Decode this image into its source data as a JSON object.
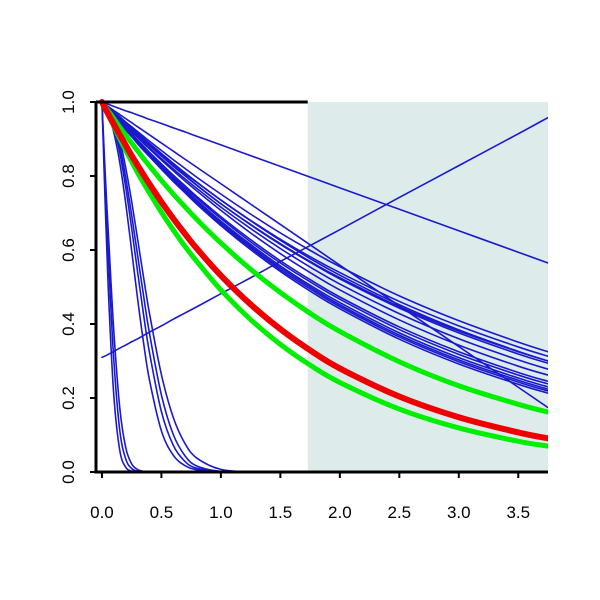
{
  "chart_data": {
    "type": "line",
    "title": "",
    "xlabel": "",
    "ylabel": "",
    "xlim": [
      -0.05,
      3.75
    ],
    "ylim": [
      0.0,
      1.0
    ],
    "grid": false,
    "legend": "none",
    "x_ticks": [
      "0.0",
      "0.5",
      "1.0",
      "1.5",
      "2.0",
      "2.5",
      "3.0",
      "3.5"
    ],
    "y_ticks": [
      "0.0",
      "0.2",
      "0.4",
      "0.6",
      "0.8",
      "1.0"
    ],
    "shaded_region": {
      "x_from": 1.73,
      "x_to": 3.75,
      "color": "#deebeb"
    },
    "x_samples": [
      0.0,
      0.03,
      0.06,
      0.1,
      0.15,
      0.2,
      0.25,
      0.3,
      0.35,
      0.4,
      0.5,
      0.6,
      0.7,
      0.8,
      1.0,
      1.25,
      1.5,
      1.75,
      2.0,
      2.5,
      3.0,
      3.5,
      3.75
    ],
    "series_styles": {
      "blue": {
        "color": "#1a1acc",
        "width": 1.6
      },
      "green": {
        "color": "#00ee00",
        "width": 5
      },
      "red": {
        "color": "#ee0000",
        "width": 6
      }
    },
    "series": [
      {
        "style": "blue",
        "values": [
          1.0,
          0.697,
          0.446,
          0.206,
          0.058,
          0.0128,
          0.0023,
          0.0003,
          0.0,
          0.0,
          0.0,
          0.0,
          0.0,
          0.0,
          0.0,
          0.0,
          0.0,
          0.0,
          0.0,
          0.0,
          0.0,
          0.0,
          0.0
        ]
      },
      {
        "style": "blue",
        "values": [
          1.0,
          0.752,
          0.541,
          0.301,
          0.112,
          0.035,
          0.0094,
          0.0022,
          0.0005,
          0.0001,
          0.0,
          0.0,
          0.0,
          0.0,
          0.0,
          0.0,
          0.0,
          0.0,
          0.0,
          0.0,
          0.0,
          0.0,
          0.0
        ]
      },
      {
        "style": "blue",
        "values": [
          1.0,
          0.789,
          0.609,
          0.38,
          0.173,
          0.066,
          0.022,
          0.0067,
          0.0018,
          0.0004,
          0.0,
          0.0,
          0.0,
          0.0,
          0.0,
          0.0,
          0.0,
          0.0,
          0.0,
          0.0,
          0.0,
          0.0,
          0.0
        ]
      },
      {
        "style": "blue",
        "values": [
          1.0,
          0.982,
          0.959,
          0.917,
          0.836,
          0.726,
          0.598,
          0.468,
          0.349,
          0.248,
          0.111,
          0.045,
          0.017,
          0.006,
          0.0007,
          0.0,
          0.0,
          0.0,
          0.0,
          0.0,
          0.0,
          0.0,
          0.0
        ]
      },
      {
        "style": "blue",
        "values": [
          1.0,
          0.985,
          0.965,
          0.931,
          0.863,
          0.769,
          0.658,
          0.54,
          0.425,
          0.322,
          0.163,
          0.072,
          0.028,
          0.01,
          0.001,
          0.0,
          0.0,
          0.0,
          0.0,
          0.0,
          0.0,
          0.0,
          0.0
        ]
      },
      {
        "style": "blue",
        "values": [
          1.0,
          0.987,
          0.97,
          0.94,
          0.88,
          0.795,
          0.694,
          0.585,
          0.476,
          0.374,
          0.208,
          0.101,
          0.043,
          0.016,
          0.0017,
          0.0,
          0.0,
          0.0,
          0.0,
          0.0,
          0.0,
          0.0,
          0.0
        ]
      },
      {
        "style": "blue",
        "values": [
          1.0,
          0.989,
          0.974,
          0.949,
          0.897,
          0.822,
          0.731,
          0.629,
          0.526,
          0.428,
          0.263,
          0.147,
          0.076,
          0.037,
          0.007,
          0.0006,
          0.0,
          0.0,
          0.0,
          0.0,
          0.0,
          0.0,
          0.0
        ]
      },
      {
        "style": "blue",
        "values": [
          0.31,
          0.314,
          0.319,
          0.326,
          0.335,
          0.343,
          0.352,
          0.36,
          0.369,
          0.378,
          0.395,
          0.413,
          0.43,
          0.447,
          0.482,
          0.525,
          0.569,
          0.612,
          0.655,
          0.742,
          0.828,
          0.914,
          0.958
        ]
      },
      {
        "style": "blue",
        "values": [
          1.0,
          0.996,
          0.993,
          0.988,
          0.982,
          0.976,
          0.971,
          0.965,
          0.959,
          0.953,
          0.942,
          0.93,
          0.919,
          0.907,
          0.884,
          0.855,
          0.826,
          0.797,
          0.768,
          0.71,
          0.652,
          0.594,
          0.565
        ]
      },
      {
        "style": "blue",
        "values": [
          1.0,
          0.993,
          0.986,
          0.977,
          0.966,
          0.955,
          0.944,
          0.933,
          0.922,
          0.911,
          0.889,
          0.867,
          0.845,
          0.823,
          0.779,
          0.724,
          0.669,
          0.614,
          0.559,
          0.449,
          0.339,
          0.229,
          0.174
        ]
      },
      {
        "style": "blue",
        "values": [
          1.0,
          0.992,
          0.984,
          0.973,
          0.96,
          0.946,
          0.933,
          0.92,
          0.907,
          0.894,
          0.869,
          0.844,
          0.82,
          0.796,
          0.751,
          0.697,
          0.646,
          0.599,
          0.555,
          0.476,
          0.409,
          0.351,
          0.325
        ]
      },
      {
        "style": "blue",
        "values": [
          1.0,
          0.992,
          0.983,
          0.972,
          0.958,
          0.944,
          0.93,
          0.916,
          0.902,
          0.888,
          0.861,
          0.834,
          0.808,
          0.783,
          0.735,
          0.679,
          0.626,
          0.577,
          0.532,
          0.452,
          0.384,
          0.326,
          0.3
        ]
      },
      {
        "style": "blue",
        "values": [
          1.0,
          0.991,
          0.982,
          0.971,
          0.956,
          0.941,
          0.926,
          0.912,
          0.897,
          0.883,
          0.855,
          0.827,
          0.801,
          0.775,
          0.725,
          0.668,
          0.615,
          0.567,
          0.522,
          0.443,
          0.376,
          0.319,
          0.294
        ]
      },
      {
        "style": "blue",
        "values": [
          1.0,
          0.991,
          0.982,
          0.97,
          0.955,
          0.94,
          0.925,
          0.911,
          0.896,
          0.882,
          0.854,
          0.826,
          0.8,
          0.774,
          0.725,
          0.669,
          0.617,
          0.569,
          0.525,
          0.447,
          0.381,
          0.325,
          0.3
        ]
      },
      {
        "style": "blue",
        "values": [
          1.0,
          0.991,
          0.982,
          0.97,
          0.955,
          0.941,
          0.926,
          0.912,
          0.898,
          0.885,
          0.858,
          0.832,
          0.806,
          0.782,
          0.735,
          0.68,
          0.629,
          0.582,
          0.539,
          0.461,
          0.395,
          0.338,
          0.313
        ]
      },
      {
        "style": "blue",
        "values": [
          1.0,
          0.99,
          0.981,
          0.968,
          0.952,
          0.937,
          0.921,
          0.906,
          0.891,
          0.876,
          0.847,
          0.819,
          0.792,
          0.766,
          0.716,
          0.658,
          0.604,
          0.554,
          0.508,
          0.428,
          0.36,
          0.303,
          0.278
        ]
      },
      {
        "style": "blue",
        "values": [
          1.0,
          0.99,
          0.98,
          0.968,
          0.951,
          0.935,
          0.919,
          0.904,
          0.888,
          0.873,
          0.843,
          0.814,
          0.786,
          0.759,
          0.707,
          0.646,
          0.59,
          0.539,
          0.492,
          0.411,
          0.343,
          0.286,
          0.262
        ]
      },
      {
        "style": "blue",
        "values": [
          1.0,
          0.99,
          0.98,
          0.966,
          0.949,
          0.931,
          0.914,
          0.897,
          0.881,
          0.864,
          0.833,
          0.802,
          0.773,
          0.744,
          0.69,
          0.628,
          0.571,
          0.52,
          0.473,
          0.392,
          0.325,
          0.269,
          0.245
        ]
      },
      {
        "style": "blue",
        "values": [
          1.0,
          0.989,
          0.979,
          0.965,
          0.948,
          0.93,
          0.913,
          0.896,
          0.879,
          0.862,
          0.83,
          0.799,
          0.769,
          0.74,
          0.685,
          0.622,
          0.565,
          0.514,
          0.467,
          0.385,
          0.318,
          0.262,
          0.238
        ]
      },
      {
        "style": "blue",
        "values": [
          1.0,
          0.989,
          0.978,
          0.964,
          0.946,
          0.928,
          0.91,
          0.893,
          0.876,
          0.859,
          0.826,
          0.794,
          0.764,
          0.734,
          0.678,
          0.615,
          0.557,
          0.505,
          0.458,
          0.376,
          0.309,
          0.254,
          0.23
        ]
      },
      {
        "style": "blue",
        "values": [
          1.0,
          0.989,
          0.978,
          0.964,
          0.945,
          0.927,
          0.909,
          0.891,
          0.873,
          0.856,
          0.823,
          0.791,
          0.76,
          0.73,
          0.674,
          0.61,
          0.552,
          0.5,
          0.452,
          0.37,
          0.303,
          0.248,
          0.224
        ]
      },
      {
        "style": "blue",
        "values": [
          1.0,
          0.989,
          0.978,
          0.963,
          0.944,
          0.926,
          0.907,
          0.889,
          0.872,
          0.854,
          0.821,
          0.788,
          0.757,
          0.727,
          0.67,
          0.606,
          0.547,
          0.495,
          0.447,
          0.365,
          0.298,
          0.243,
          0.219
        ]
      },
      {
        "style": "blue",
        "values": [
          1.0,
          0.988,
          0.977,
          0.962,
          0.943,
          0.924,
          0.906,
          0.887,
          0.869,
          0.852,
          0.818,
          0.785,
          0.754,
          0.723,
          0.666,
          0.601,
          0.542,
          0.489,
          0.441,
          0.359,
          0.292,
          0.237,
          0.213
        ]
      },
      {
        "style": "green",
        "values": [
          1.0,
          0.986,
          0.973,
          0.955,
          0.932,
          0.91,
          0.889,
          0.868,
          0.847,
          0.827,
          0.788,
          0.751,
          0.716,
          0.682,
          0.619,
          0.548,
          0.485,
          0.429,
          0.38,
          0.298,
          0.233,
          0.183,
          0.162
        ]
      },
      {
        "style": "green",
        "values": [
          1.0,
          0.98,
          0.96,
          0.934,
          0.901,
          0.869,
          0.839,
          0.809,
          0.781,
          0.754,
          0.702,
          0.654,
          0.609,
          0.568,
          0.492,
          0.412,
          0.345,
          0.289,
          0.242,
          0.17,
          0.119,
          0.083,
          0.07
        ]
      },
      {
        "style": "red",
        "values": [
          1.0,
          0.981,
          0.963,
          0.94,
          0.911,
          0.883,
          0.855,
          0.829,
          0.803,
          0.778,
          0.73,
          0.685,
          0.643,
          0.603,
          0.531,
          0.453,
          0.386,
          0.329,
          0.28,
          0.204,
          0.148,
          0.107,
          0.091
        ]
      }
    ]
  }
}
